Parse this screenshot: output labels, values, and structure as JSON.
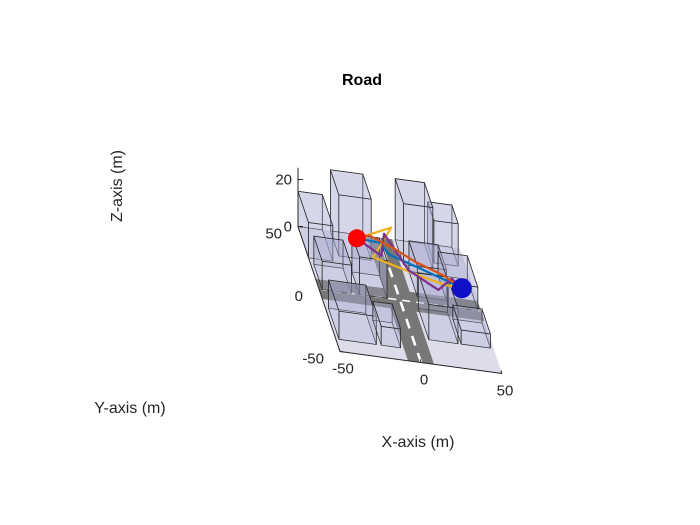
{
  "chart_data": {
    "type": "3d-scene",
    "title": "Road",
    "xlabel": "X-axis (m)",
    "ylabel": "Y-axis (m)",
    "zlabel": "Z-axis (m)",
    "xlim": [
      -50,
      50
    ],
    "ylim": [
      -50,
      50
    ],
    "zlim": [
      0,
      25
    ],
    "xticks": [
      "-50",
      "0",
      "50"
    ],
    "yticks": [
      "-50",
      "0",
      "50"
    ],
    "zticks": [
      "0",
      "20"
    ],
    "buildings": [
      {
        "x": [
          -50,
          -35
        ],
        "y": [
          25,
          50
        ],
        "z": [
          0,
          15
        ]
      },
      {
        "x": [
          -30,
          -10
        ],
        "y": [
          30,
          50
        ],
        "z": [
          0,
          26
        ]
      },
      {
        "x": [
          -48,
          -30
        ],
        "y": [
          0,
          20
        ],
        "z": [
          0,
          12
        ]
      },
      {
        "x": [
          -25,
          -8
        ],
        "y": [
          0,
          18
        ],
        "z": [
          0,
          16
        ]
      },
      {
        "x": [
          -48,
          -25
        ],
        "y": [
          -40,
          -15
        ],
        "z": [
          0,
          12
        ]
      },
      {
        "x": [
          -22,
          -10
        ],
        "y": [
          -40,
          -20
        ],
        "z": [
          0,
          8
        ]
      },
      {
        "x": [
          10,
          28
        ],
        "y": [
          30,
          50
        ],
        "z": [
          0,
          26
        ]
      },
      {
        "x": [
          30,
          45
        ],
        "y": [
          35,
          50
        ],
        "z": [
          0,
          18
        ]
      },
      {
        "x": [
          12,
          30
        ],
        "y": [
          5,
          25
        ],
        "z": [
          0,
          13
        ]
      },
      {
        "x": [
          30,
          48
        ],
        "y": [
          0,
          25
        ],
        "z": [
          0,
          10
        ]
      },
      {
        "x": [
          10,
          28
        ],
        "y": [
          -30,
          -5
        ],
        "z": [
          0,
          15
        ]
      },
      {
        "x": [
          30,
          48
        ],
        "y": [
          -30,
          -10
        ],
        "z": [
          0,
          6
        ]
      }
    ],
    "start_marker": {
      "color": "#ff0000",
      "x": -17,
      "y": 37,
      "z": 5
    },
    "goal_marker": {
      "color": "#1010c8",
      "x": 40,
      "y": 7,
      "z": 5
    },
    "series": [
      {
        "color": "#0072bd",
        "points": [
          [
            -17,
            37,
            5
          ],
          [
            -5,
            30,
            8
          ],
          [
            0,
            25,
            6
          ],
          [
            15,
            20,
            5
          ],
          [
            35,
            10,
            5
          ],
          [
            40,
            7,
            5
          ]
        ]
      },
      {
        "color": "#edb120",
        "points": [
          [
            -17,
            37,
            5
          ],
          [
            5,
            40,
            10
          ],
          [
            -10,
            25,
            4
          ],
          [
            15,
            15,
            4
          ],
          [
            30,
            10,
            4
          ],
          [
            40,
            7,
            5
          ]
        ]
      },
      {
        "color": "#7e2f8e",
        "points": [
          [
            -17,
            37,
            5
          ],
          [
            -5,
            25,
            5
          ],
          [
            0,
            38,
            8
          ],
          [
            10,
            18,
            4
          ],
          [
            25,
            5,
            4
          ],
          [
            35,
            12,
            6
          ],
          [
            40,
            7,
            5
          ]
        ]
      },
      {
        "color": "#d95319",
        "points": [
          [
            -17,
            37,
            5
          ],
          [
            -10,
            35,
            8
          ],
          [
            5,
            30,
            6
          ],
          [
            15,
            22,
            6
          ],
          [
            30,
            14,
            6
          ],
          [
            40,
            7,
            5
          ]
        ]
      }
    ]
  }
}
